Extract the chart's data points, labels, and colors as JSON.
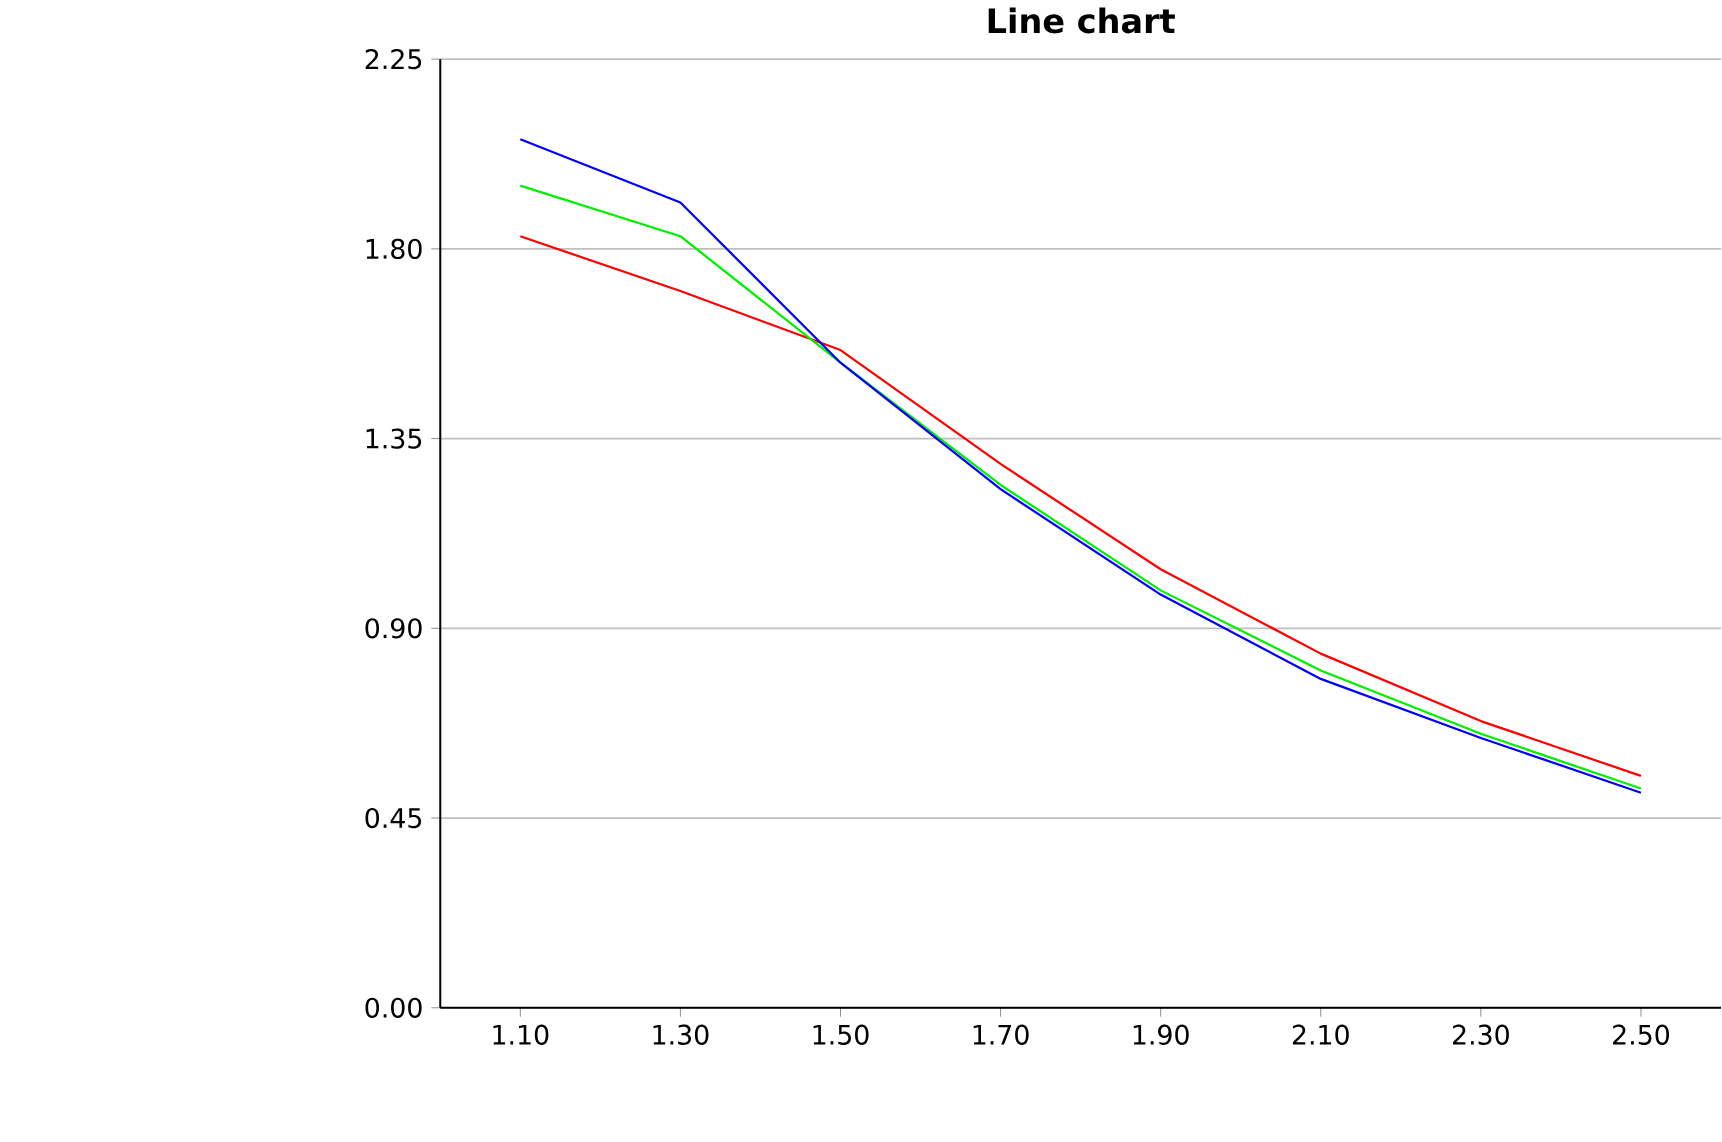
{
  "chart_data": {
    "type": "line",
    "title": "Line chart",
    "x": [
      1.1,
      1.3,
      1.5,
      1.7,
      1.9,
      2.1,
      2.3,
      2.5
    ],
    "series": [
      {
        "color": "#ff0000",
        "values": [
          1.83,
          1.7,
          1.56,
          1.29,
          1.04,
          0.84,
          0.68,
          0.55
        ]
      },
      {
        "color": "#00ee00",
        "values": [
          1.95,
          1.83,
          1.53,
          1.24,
          0.99,
          0.8,
          0.65,
          0.52
        ]
      },
      {
        "color": "#0000ff",
        "values": [
          2.06,
          1.91,
          1.53,
          1.23,
          0.98,
          0.78,
          0.64,
          0.51
        ]
      }
    ],
    "xlim": [
      1.0,
      2.6
    ],
    "ylim": [
      0,
      2.25
    ],
    "xticks": [
      {
        "value": 1.1,
        "label": "1.10"
      },
      {
        "value": 1.3,
        "label": "1.30"
      },
      {
        "value": 1.5,
        "label": "1.50"
      },
      {
        "value": 1.7,
        "label": "1.70"
      },
      {
        "value": 1.9,
        "label": "1.90"
      },
      {
        "value": 2.1,
        "label": "2.10"
      },
      {
        "value": 2.3,
        "label": "2.30"
      },
      {
        "value": 2.5,
        "label": "2.50"
      }
    ],
    "yticks": [
      {
        "value": 0,
        "label": "0.00"
      },
      {
        "value": 0.45,
        "label": "0.45"
      },
      {
        "value": 0.9,
        "label": "0.90"
      },
      {
        "value": 1.35,
        "label": "1.35"
      },
      {
        "value": 1.8,
        "label": "1.80"
      },
      {
        "value": 2.25,
        "label": "2.25"
      }
    ],
    "grid": "y",
    "legend": false,
    "marker": "none",
    "line_style": "solid"
  }
}
